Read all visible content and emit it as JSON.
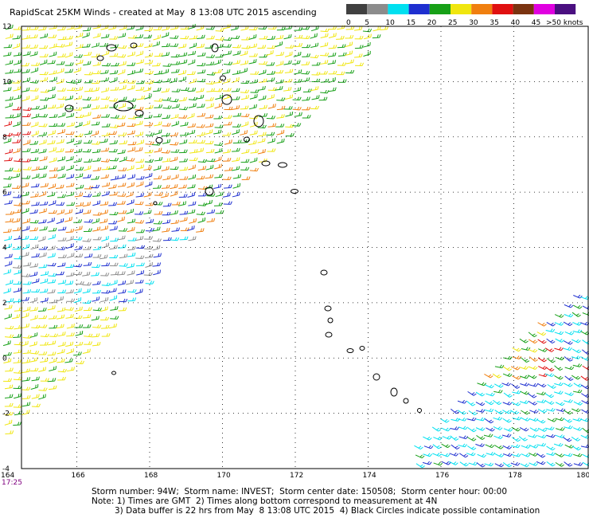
{
  "header": {
    "title": "RapidScat 25KM Winds - created at May  8 13:08 UTC 2015 ascending"
  },
  "legend": {
    "swatches": [
      {
        "label": "0",
        "color": "#404040"
      },
      {
        "label": "5",
        "color": "#8c8c8c"
      },
      {
        "label": "10",
        "color": "#00e0f0"
      },
      {
        "label": "15",
        "color": "#1e2fd0"
      },
      {
        "label": "20",
        "color": "#17a017"
      },
      {
        "label": "25",
        "color": "#f0e60f"
      },
      {
        "label": "30",
        "color": "#f07f0f"
      },
      {
        "label": "35",
        "color": "#e01010"
      },
      {
        "label": "40",
        "color": "#7a3310"
      },
      {
        "label": "45",
        "color": "#e000e0"
      },
      {
        "label": "",
        "color": "#4a0f80"
      }
    ],
    "last_label": ">50 knots"
  },
  "axes": {
    "x_ticks": [
      "164",
      "166",
      "168",
      "170",
      "172",
      "174",
      "176",
      "178",
      "180"
    ],
    "y_ticks": [
      "12",
      "10",
      "8",
      "6",
      "4",
      "2",
      "0",
      "-2",
      "-4"
    ],
    "lon_range": [
      164,
      180
    ],
    "lat_range": [
      -4,
      12
    ]
  },
  "time_label": "17:25",
  "footer": {
    "line1": "Storm number: 94W;  Storm name: INVEST;  Storm center date: 150508;  Storm center hour: 00:00",
    "line2": "Note: 1) Times are GMT  2) Times along bottom correspond to measurement at 4N",
    "line3": "3) Data buffer is 22 hrs from May  8 13:08 UTC 2015  4) Black Circles indicate possible contamination"
  },
  "wind_colors": {
    "calm": "#8c8c8c",
    "light": "#00e0f0",
    "moderate": "#1e2fd0",
    "fresh": "#17a017",
    "strong": "#f0e60f",
    "gale": "#f07f0f",
    "storm": "#e01010"
  }
}
